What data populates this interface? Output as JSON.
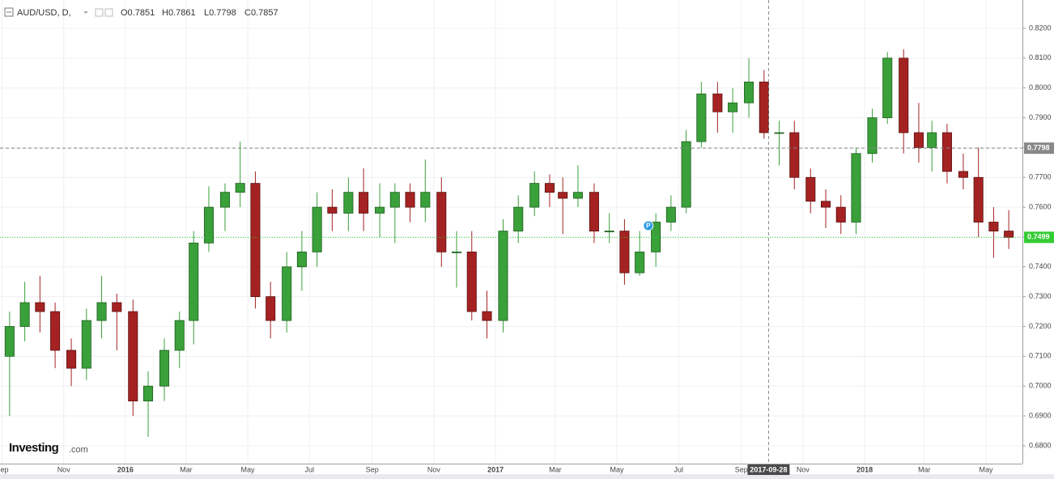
{
  "chart_data": {
    "type": "candlestick",
    "title": "AUD/USD, D,",
    "ohlc_label": [
      "O0.7851",
      "H0.7861",
      "L0.7798",
      "C0.7857"
    ],
    "brand": [
      "Investing",
      ".com"
    ],
    "up_color": "#3aa03a",
    "down_color": "#a52222",
    "x": [
      "2015-09-01",
      "2015-09-16",
      "2015-10-01",
      "2015-10-16",
      "2015-11-01",
      "2015-11-16",
      "2015-12-01",
      "2015-12-16",
      "2016-01-01",
      "2016-01-16",
      "2016-02-01",
      "2016-02-16",
      "2016-03-01",
      "2016-03-16",
      "2016-04-01",
      "2016-04-16",
      "2016-05-01",
      "2016-05-16",
      "2016-06-01",
      "2016-06-16",
      "2016-07-01",
      "2016-07-16",
      "2016-08-01",
      "2016-08-16",
      "2016-09-01",
      "2016-09-16",
      "2016-10-01",
      "2016-10-16",
      "2016-11-01",
      "2016-11-16",
      "2016-12-01",
      "2016-12-16",
      "2017-01-01",
      "2017-01-16",
      "2017-02-01",
      "2017-02-16",
      "2017-03-01",
      "2017-03-16",
      "2017-04-01",
      "2017-04-16",
      "2017-05-01",
      "2017-05-16",
      "2017-06-01",
      "2017-06-16",
      "2017-07-01",
      "2017-07-16",
      "2017-08-01",
      "2017-08-16",
      "2017-09-01",
      "2017-09-16",
      "2017-10-01",
      "2017-10-16",
      "2017-11-01",
      "2017-11-16",
      "2017-12-01",
      "2017-12-16",
      "2018-01-01",
      "2018-01-16",
      "2018-02-01",
      "2018-02-16",
      "2018-03-01",
      "2018-03-16",
      "2018-04-01",
      "2018-04-16",
      "2018-05-01",
      "2018-05-16"
    ],
    "open": [
      0.71,
      0.72,
      0.728,
      0.725,
      0.712,
      0.706,
      0.722,
      0.728,
      0.725,
      0.695,
      0.7,
      0.712,
      0.722,
      0.748,
      0.76,
      0.765,
      0.768,
      0.73,
      0.722,
      0.74,
      0.745,
      0.76,
      0.758,
      0.765,
      0.758,
      0.76,
      0.765,
      0.76,
      0.765,
      0.745,
      0.745,
      0.725,
      0.722,
      0.752,
      0.76,
      0.768,
      0.765,
      0.763,
      0.765,
      0.752,
      0.752,
      0.738,
      0.745,
      0.755,
      0.76,
      0.782,
      0.798,
      0.792,
      0.795,
      0.802,
      0.785,
      0.785,
      0.77,
      0.762,
      0.76,
      0.755,
      0.778,
      0.79,
      0.81,
      0.785,
      0.78,
      0.785,
      0.772,
      0.77,
      0.755,
      0.752
    ],
    "high": [
      0.725,
      0.735,
      0.737,
      0.728,
      0.716,
      0.726,
      0.737,
      0.731,
      0.729,
      0.705,
      0.716,
      0.725,
      0.752,
      0.767,
      0.768,
      0.782,
      0.772,
      0.735,
      0.745,
      0.752,
      0.765,
      0.766,
      0.77,
      0.773,
      0.768,
      0.768,
      0.768,
      0.776,
      0.77,
      0.752,
      0.752,
      0.732,
      0.756,
      0.764,
      0.772,
      0.771,
      0.77,
      0.774,
      0.768,
      0.758,
      0.756,
      0.752,
      0.758,
      0.764,
      0.786,
      0.802,
      0.802,
      0.8,
      0.81,
      0.806,
      0.789,
      0.789,
      0.773,
      0.766,
      0.764,
      0.78,
      0.793,
      0.812,
      0.813,
      0.795,
      0.789,
      0.788,
      0.778,
      0.78,
      0.76,
      0.759
    ],
    "low": [
      0.69,
      0.715,
      0.718,
      0.706,
      0.7,
      0.702,
      0.716,
      0.712,
      0.69,
      0.683,
      0.695,
      0.706,
      0.714,
      0.745,
      0.752,
      0.76,
      0.726,
      0.716,
      0.718,
      0.732,
      0.74,
      0.752,
      0.752,
      0.752,
      0.75,
      0.748,
      0.755,
      0.755,
      0.74,
      0.733,
      0.722,
      0.716,
      0.718,
      0.748,
      0.757,
      0.76,
      0.751,
      0.76,
      0.748,
      0.748,
      0.734,
      0.737,
      0.74,
      0.752,
      0.758,
      0.78,
      0.785,
      0.785,
      0.79,
      0.783,
      0.774,
      0.766,
      0.758,
      0.753,
      0.751,
      0.751,
      0.775,
      0.788,
      0.778,
      0.775,
      0.772,
      0.768,
      0.766,
      0.75,
      0.743,
      0.746
    ],
    "close": [
      0.72,
      0.728,
      0.725,
      0.712,
      0.706,
      0.722,
      0.728,
      0.725,
      0.695,
      0.7,
      0.712,
      0.722,
      0.748,
      0.76,
      0.765,
      0.768,
      0.73,
      0.722,
      0.74,
      0.745,
      0.76,
      0.758,
      0.765,
      0.758,
      0.76,
      0.765,
      0.76,
      0.765,
      0.745,
      0.745,
      0.725,
      0.722,
      0.752,
      0.76,
      0.768,
      0.765,
      0.763,
      0.765,
      0.752,
      0.752,
      0.738,
      0.745,
      0.755,
      0.76,
      0.782,
      0.798,
      0.792,
      0.795,
      0.802,
      0.785,
      0.785,
      0.77,
      0.762,
      0.76,
      0.755,
      0.778,
      0.79,
      0.81,
      0.785,
      0.78,
      0.785,
      0.772,
      0.77,
      0.755,
      0.752,
      0.7499
    ],
    "xlim": [
      "2015-08-30",
      "2018-06-06"
    ],
    "xticks": [
      {
        "value": "2015-09-01",
        "label": "Sep"
      },
      {
        "value": "2015-11-01",
        "label": "Nov"
      },
      {
        "value": "2016-01-01",
        "label": "2016"
      },
      {
        "value": "2016-03-01",
        "label": "Mar"
      },
      {
        "value": "2016-05-01",
        "label": "May"
      },
      {
        "value": "2016-07-01",
        "label": "Jul"
      },
      {
        "value": "2016-09-01",
        "label": "Sep"
      },
      {
        "value": "2016-11-01",
        "label": "Nov"
      },
      {
        "value": "2017-01-01",
        "label": "2017"
      },
      {
        "value": "2017-03-01",
        "label": "Mar"
      },
      {
        "value": "2017-05-01",
        "label": "May"
      },
      {
        "value": "2017-07-01",
        "label": "Jul"
      },
      {
        "value": "2017-09-01",
        "label": "Sep"
      },
      {
        "value": "2017-11-01",
        "label": "Nov"
      },
      {
        "value": "2018-01-01",
        "label": "2018"
      },
      {
        "value": "2018-03-01",
        "label": "Mar"
      },
      {
        "value": "2018-05-01",
        "label": "May"
      }
    ],
    "ylim": [
      0.674,
      0.8295
    ],
    "yticks": [
      {
        "value": 0.68,
        "label": "0.6800"
      },
      {
        "value": 0.69,
        "label": "0.6900"
      },
      {
        "value": 0.7,
        "label": "0.7000"
      },
      {
        "value": 0.71,
        "label": "0.7100"
      },
      {
        "value": 0.72,
        "label": "0.7200"
      },
      {
        "value": 0.73,
        "label": "0.7300"
      },
      {
        "value": 0.74,
        "label": "0.7400"
      },
      {
        "value": 0.75,
        "label": "0.7500"
      },
      {
        "value": 0.76,
        "label": "0.7600"
      },
      {
        "value": 0.77,
        "label": "0.7700"
      },
      {
        "value": 0.78,
        "label": "0.7800"
      },
      {
        "value": 0.79,
        "label": "0.7900"
      },
      {
        "value": 0.8,
        "label": "0.8000"
      },
      {
        "value": 0.81,
        "label": "0.8100"
      },
      {
        "value": 0.82,
        "label": "0.8200"
      }
    ],
    "grid": true,
    "price_lines": [
      {
        "value": 0.7798,
        "label": "0.7798",
        "color": "#888888",
        "style": "dashed"
      },
      {
        "value": 0.7499,
        "label": "0.7499",
        "color": "#33cc33",
        "style": "dotted"
      }
    ],
    "crosshair": {
      "x": "2017-09-28"
    },
    "annotation": {
      "x": "2017-06-01",
      "y": 0.7538,
      "label": "P"
    }
  }
}
